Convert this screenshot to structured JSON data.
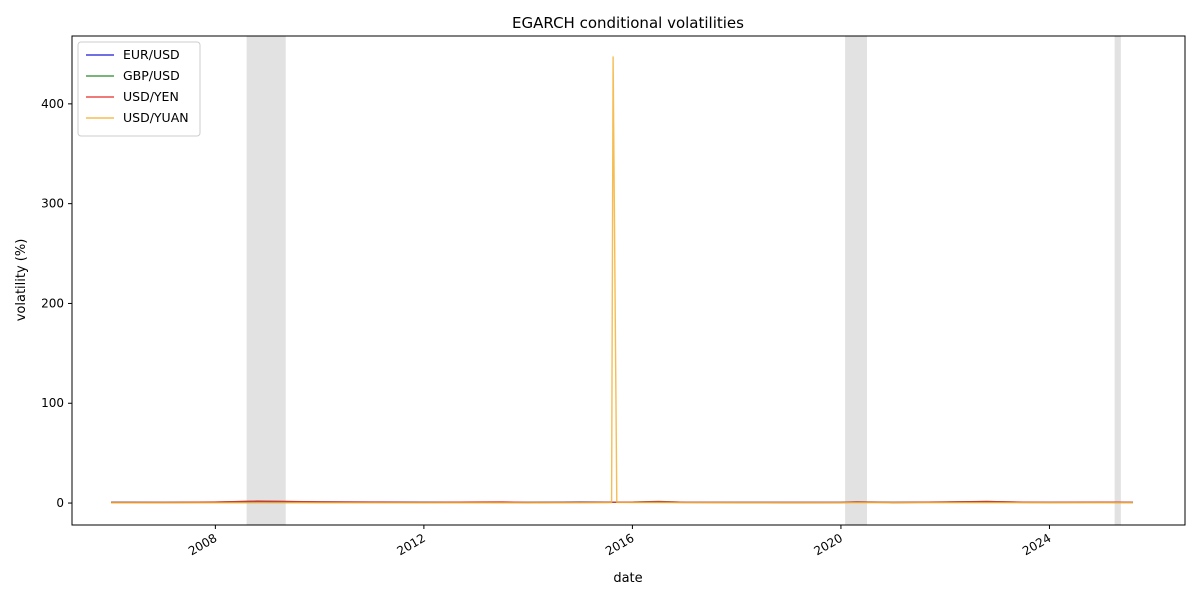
{
  "chart_data": {
    "type": "line",
    "title": "EGARCH conditional volatilities",
    "xlabel": "date",
    "ylabel": "volatility (%)",
    "xlim": [
      2005.25,
      2026.6
    ],
    "ylim": [
      -22,
      468
    ],
    "xticks": [
      {
        "value": 2008,
        "label": "2008"
      },
      {
        "value": 2012,
        "label": "2012"
      },
      {
        "value": 2016,
        "label": "2016"
      },
      {
        "value": 2020,
        "label": "2020"
      },
      {
        "value": 2024,
        "label": "2024"
      }
    ],
    "yticks": [
      {
        "value": 0,
        "label": "0"
      },
      {
        "value": 100,
        "label": "100"
      },
      {
        "value": 200,
        "label": "200"
      },
      {
        "value": 300,
        "label": "300"
      },
      {
        "value": 400,
        "label": "400"
      }
    ],
    "grid": false,
    "legend_position": "top-left",
    "shaded_periods": [
      {
        "start": 2008.6,
        "end": 2009.35
      },
      {
        "start": 2020.08,
        "end": 2020.5
      },
      {
        "start": 2025.25,
        "end": 2025.37
      }
    ],
    "series": [
      {
        "name": "EUR/USD",
        "color": "#1f1fd6",
        "x": [
          2006.0,
          2007.0,
          2008.0,
          2008.8,
          2009.2,
          2010.0,
          2011.0,
          2012.0,
          2013.0,
          2014.0,
          2015.0,
          2016.0,
          2016.5,
          2017.0,
          2018.0,
          2019.0,
          2020.0,
          2020.3,
          2021.0,
          2022.0,
          2022.8,
          2023.5,
          2024.0,
          2025.0,
          2025.6
        ],
        "y": [
          0.7,
          0.5,
          0.7,
          1.3,
          1.2,
          1.0,
          0.9,
          0.8,
          0.7,
          0.5,
          0.9,
          0.7,
          0.8,
          0.6,
          0.6,
          0.5,
          0.5,
          0.8,
          0.5,
          0.8,
          1.0,
          0.6,
          0.6,
          0.7,
          0.6
        ]
      },
      {
        "name": "GBP/USD",
        "color": "#2e8b2e",
        "x": [
          2006.0,
          2007.0,
          2008.0,
          2008.8,
          2009.2,
          2010.0,
          2011.0,
          2012.0,
          2013.0,
          2014.0,
          2015.0,
          2016.0,
          2016.5,
          2017.0,
          2018.0,
          2019.0,
          2020.0,
          2020.3,
          2021.0,
          2022.0,
          2022.8,
          2023.5,
          2024.0,
          2025.0,
          2025.6
        ],
        "y": [
          0.6,
          0.5,
          0.8,
          1.8,
          1.6,
          0.9,
          0.7,
          0.6,
          0.6,
          0.5,
          0.7,
          0.8,
          1.5,
          0.7,
          0.6,
          0.6,
          0.7,
          1.1,
          0.6,
          0.9,
          1.5,
          0.7,
          0.6,
          0.6,
          0.6
        ]
      },
      {
        "name": "USD/YEN",
        "color": "#e8302a",
        "x": [
          2006.0,
          2007.0,
          2008.0,
          2008.8,
          2009.2,
          2010.0,
          2011.0,
          2012.0,
          2013.0,
          2013.5,
          2014.0,
          2015.0,
          2016.0,
          2016.5,
          2017.0,
          2018.0,
          2019.0,
          2020.0,
          2020.3,
          2021.0,
          2022.0,
          2022.8,
          2023.5,
          2024.0,
          2025.0,
          2025.6
        ],
        "y": [
          0.6,
          0.5,
          0.9,
          1.9,
          1.7,
          1.0,
          0.8,
          0.6,
          0.9,
          1.1,
          0.6,
          0.6,
          0.8,
          1.3,
          0.7,
          0.6,
          0.5,
          0.6,
          0.9,
          0.5,
          0.9,
          1.4,
          0.8,
          0.7,
          0.8,
          0.7
        ]
      },
      {
        "name": "USD/YUAN",
        "color": "#f5b236",
        "x": [
          2006.0,
          2008.0,
          2010.0,
          2012.0,
          2014.0,
          2015.5,
          2015.6,
          2015.63,
          2015.7,
          2016.0,
          2018.0,
          2020.0,
          2022.0,
          2024.0,
          2025.6
        ],
        "y": [
          0.2,
          0.2,
          0.2,
          0.2,
          0.2,
          0.3,
          0.4,
          447.0,
          0.6,
          0.4,
          0.3,
          0.3,
          0.3,
          0.3,
          0.3
        ]
      }
    ]
  }
}
